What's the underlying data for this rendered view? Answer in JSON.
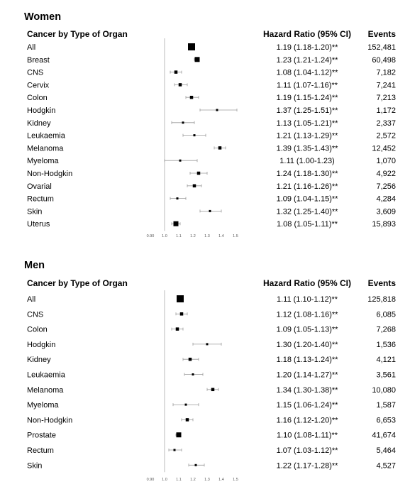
{
  "chart_data": [
    {
      "type": "forest",
      "title": "Women",
      "column_headers": {
        "label": "Cancer by Type of Organ",
        "hr": "Hazard Ratio (95% CI)",
        "events": "Events"
      },
      "xlim": [
        0.9,
        1.5
      ],
      "reference_line": 1.0,
      "ticks": [
        "0.90",
        "1.0",
        "1.1",
        "1.2",
        "1.3",
        "1.4",
        "1.5"
      ],
      "rows": [
        {
          "label": "All",
          "hr": 1.19,
          "lo": 1.18,
          "hi": 1.2,
          "text": "1.19 (1.18-1.20)**",
          "events": "152,481",
          "weight": 3
        },
        {
          "label": "Breast",
          "hr": 1.23,
          "lo": 1.21,
          "hi": 1.24,
          "text": "1.23 (1.21-1.24)**",
          "events": "60,498",
          "weight": 2
        },
        {
          "label": "CNS",
          "hr": 1.08,
          "lo": 1.04,
          "hi": 1.12,
          "text": "1.08 (1.04-1.12)**",
          "events": "7,182",
          "weight": 1
        },
        {
          "label": "Cervix",
          "hr": 1.11,
          "lo": 1.07,
          "hi": 1.16,
          "text": "1.11 (1.07-1.16)**",
          "events": "7,241",
          "weight": 1
        },
        {
          "label": "Colon",
          "hr": 1.19,
          "lo": 1.15,
          "hi": 1.24,
          "text": "1.19 (1.15-1.24)**",
          "events": "7,213",
          "weight": 1
        },
        {
          "label": "Hodgkin",
          "hr": 1.37,
          "lo": 1.25,
          "hi": 1.51,
          "text": "1.37 (1.25-1.51)**",
          "events": "1,172",
          "weight": 0
        },
        {
          "label": "Kidney",
          "hr": 1.13,
          "lo": 1.05,
          "hi": 1.21,
          "text": "1.13 (1.05-1.21)**",
          "events": "2,337",
          "weight": 0
        },
        {
          "label": "Leukaemia",
          "hr": 1.21,
          "lo": 1.13,
          "hi": 1.29,
          "text": "1.21 (1.13-1.29)**",
          "events": "2,572",
          "weight": 0
        },
        {
          "label": "Melanoma",
          "hr": 1.39,
          "lo": 1.35,
          "hi": 1.43,
          "text": "1.39 (1.35-1.43)**",
          "events": "12,452",
          "weight": 1
        },
        {
          "label": "Myeloma",
          "hr": 1.11,
          "lo": 1.0,
          "hi": 1.23,
          "text": "1.11 (1.00-1.23)",
          "events": "1,070",
          "weight": 0
        },
        {
          "label": "Non-Hodgkin",
          "hr": 1.24,
          "lo": 1.18,
          "hi": 1.3,
          "text": "1.24 (1.18-1.30)**",
          "events": "4,922",
          "weight": 1
        },
        {
          "label": "Ovarial",
          "hr": 1.21,
          "lo": 1.16,
          "hi": 1.26,
          "text": "1.21 (1.16-1.26)**",
          "events": "7,256",
          "weight": 1
        },
        {
          "label": "Rectum",
          "hr": 1.09,
          "lo": 1.04,
          "hi": 1.15,
          "text": "1.09 (1.04-1.15)**",
          "events": "4,284",
          "weight": 0
        },
        {
          "label": "Skin",
          "hr": 1.32,
          "lo": 1.25,
          "hi": 1.4,
          "text": "1.32 (1.25-1.40)**",
          "events": "3,609",
          "weight": 0
        },
        {
          "label": "Uterus",
          "hr": 1.08,
          "lo": 1.05,
          "hi": 1.11,
          "text": "1.08 (1.05-1.11)**",
          "events": "15,893",
          "weight": 2
        }
      ]
    },
    {
      "type": "forest",
      "title": "Men",
      "column_headers": {
        "label": "Cancer by Type of Organ",
        "hr": "Hazard Ratio (95% CI)",
        "events": "Events"
      },
      "xlim": [
        0.9,
        1.5
      ],
      "reference_line": 1.0,
      "ticks": [
        "0.90",
        "1.0",
        "1.1",
        "1.2",
        "1.3",
        "1.4",
        "1.5"
      ],
      "rows": [
        {
          "label": "All",
          "hr": 1.11,
          "lo": 1.1,
          "hi": 1.12,
          "text": "1.11 (1.10-1.12)**",
          "events": "125,818",
          "weight": 3
        },
        {
          "label": "CNS",
          "hr": 1.12,
          "lo": 1.08,
          "hi": 1.16,
          "text": "1.12 (1.08-1.16)**",
          "events": "6,085",
          "weight": 1
        },
        {
          "label": "Colon",
          "hr": 1.09,
          "lo": 1.05,
          "hi": 1.13,
          "text": "1.09 (1.05-1.13)**",
          "events": "7,268",
          "weight": 1
        },
        {
          "label": "Hodgkin",
          "hr": 1.3,
          "lo": 1.2,
          "hi": 1.4,
          "text": "1.30 (1.20-1.40)**",
          "events": "1,536",
          "weight": 0
        },
        {
          "label": "Kidney",
          "hr": 1.18,
          "lo": 1.13,
          "hi": 1.24,
          "text": "1.18 (1.13-1.24)**",
          "events": "4,121",
          "weight": 1
        },
        {
          "label": "Leukaemia",
          "hr": 1.2,
          "lo": 1.14,
          "hi": 1.27,
          "text": "1.20 (1.14-1.27)**",
          "events": "3,561",
          "weight": 0
        },
        {
          "label": "Melanoma",
          "hr": 1.34,
          "lo": 1.3,
          "hi": 1.38,
          "text": "1.34 (1.30-1.38)**",
          "events": "10,080",
          "weight": 1
        },
        {
          "label": "Myeloma",
          "hr": 1.15,
          "lo": 1.06,
          "hi": 1.24,
          "text": "1.15 (1.06-1.24)**",
          "events": "1,587",
          "weight": 0
        },
        {
          "label": "Non-Hodgkin",
          "hr": 1.16,
          "lo": 1.12,
          "hi": 1.2,
          "text": "1.16 (1.12-1.20)**",
          "events": "6,653",
          "weight": 1
        },
        {
          "label": "Prostate",
          "hr": 1.1,
          "lo": 1.08,
          "hi": 1.11,
          "text": "1.10 (1.08-1.11)**",
          "events": "41,674",
          "weight": 2
        },
        {
          "label": "Rectum",
          "hr": 1.07,
          "lo": 1.03,
          "hi": 1.12,
          "text": "1.07 (1.03-1.12)**",
          "events": "5,464",
          "weight": 0
        },
        {
          "label": "Skin",
          "hr": 1.22,
          "lo": 1.17,
          "hi": 1.28,
          "text": "1.22 (1.17-1.28)**",
          "events": "4,527",
          "weight": 0
        }
      ]
    }
  ]
}
